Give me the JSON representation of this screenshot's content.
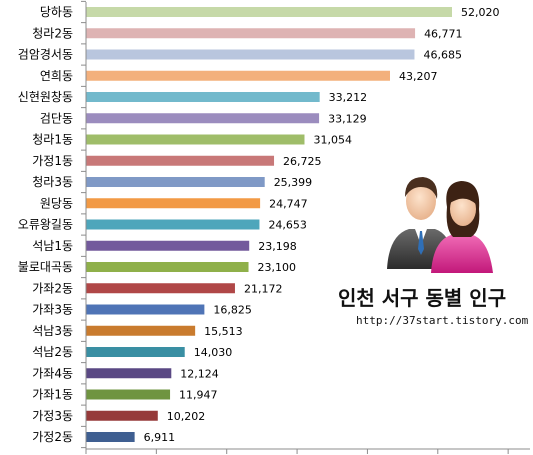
{
  "chart_data": {
    "type": "bar",
    "orientation": "horizontal",
    "title": "인천 서구 동별 인구",
    "source": "http://37start.tistory.com",
    "categories": [
      "당하동",
      "청라2동",
      "검암경서동",
      "연희동",
      "신현원창동",
      "검단동",
      "청라1동",
      "가정1동",
      "청라3동",
      "원당동",
      "오류왕길동",
      "석남1동",
      "불로대곡동",
      "가좌2동",
      "가좌3동",
      "석남3동",
      "석남2동",
      "가좌4동",
      "가좌1동",
      "가정3동",
      "가정2동"
    ],
    "values": [
      52020,
      46771,
      46685,
      43207,
      33212,
      33129,
      31054,
      26725,
      25399,
      24747,
      24653,
      23198,
      23100,
      21172,
      16825,
      15513,
      14030,
      12124,
      11947,
      10202,
      6911
    ],
    "value_labels": [
      "52,020",
      "46,771",
      "46,685",
      "43,207",
      "33,212",
      "33,129",
      "31,054",
      "26,725",
      "25,399",
      "24,747",
      "24,653",
      "23,198",
      "23,100",
      "21,172",
      "16,825",
      "15,513",
      "14,030",
      "12,124",
      "11,947",
      "10,202",
      "6,911"
    ],
    "colors": [
      "#c6d9a8",
      "#deb3b3",
      "#b9c6de",
      "#f3b07c",
      "#72b9cc",
      "#9b8cbe",
      "#9fbd69",
      "#c87878",
      "#7f99c6",
      "#f29a45",
      "#4ea6bb",
      "#735a9c",
      "#8fb04a",
      "#b04747",
      "#4f74b6",
      "#c97b2e",
      "#3a8fa3",
      "#5a4884",
      "#6f9440",
      "#963a3a",
      "#3f5f91"
    ],
    "xlim": [
      0,
      60000
    ],
    "grid": false,
    "legend": "none"
  }
}
